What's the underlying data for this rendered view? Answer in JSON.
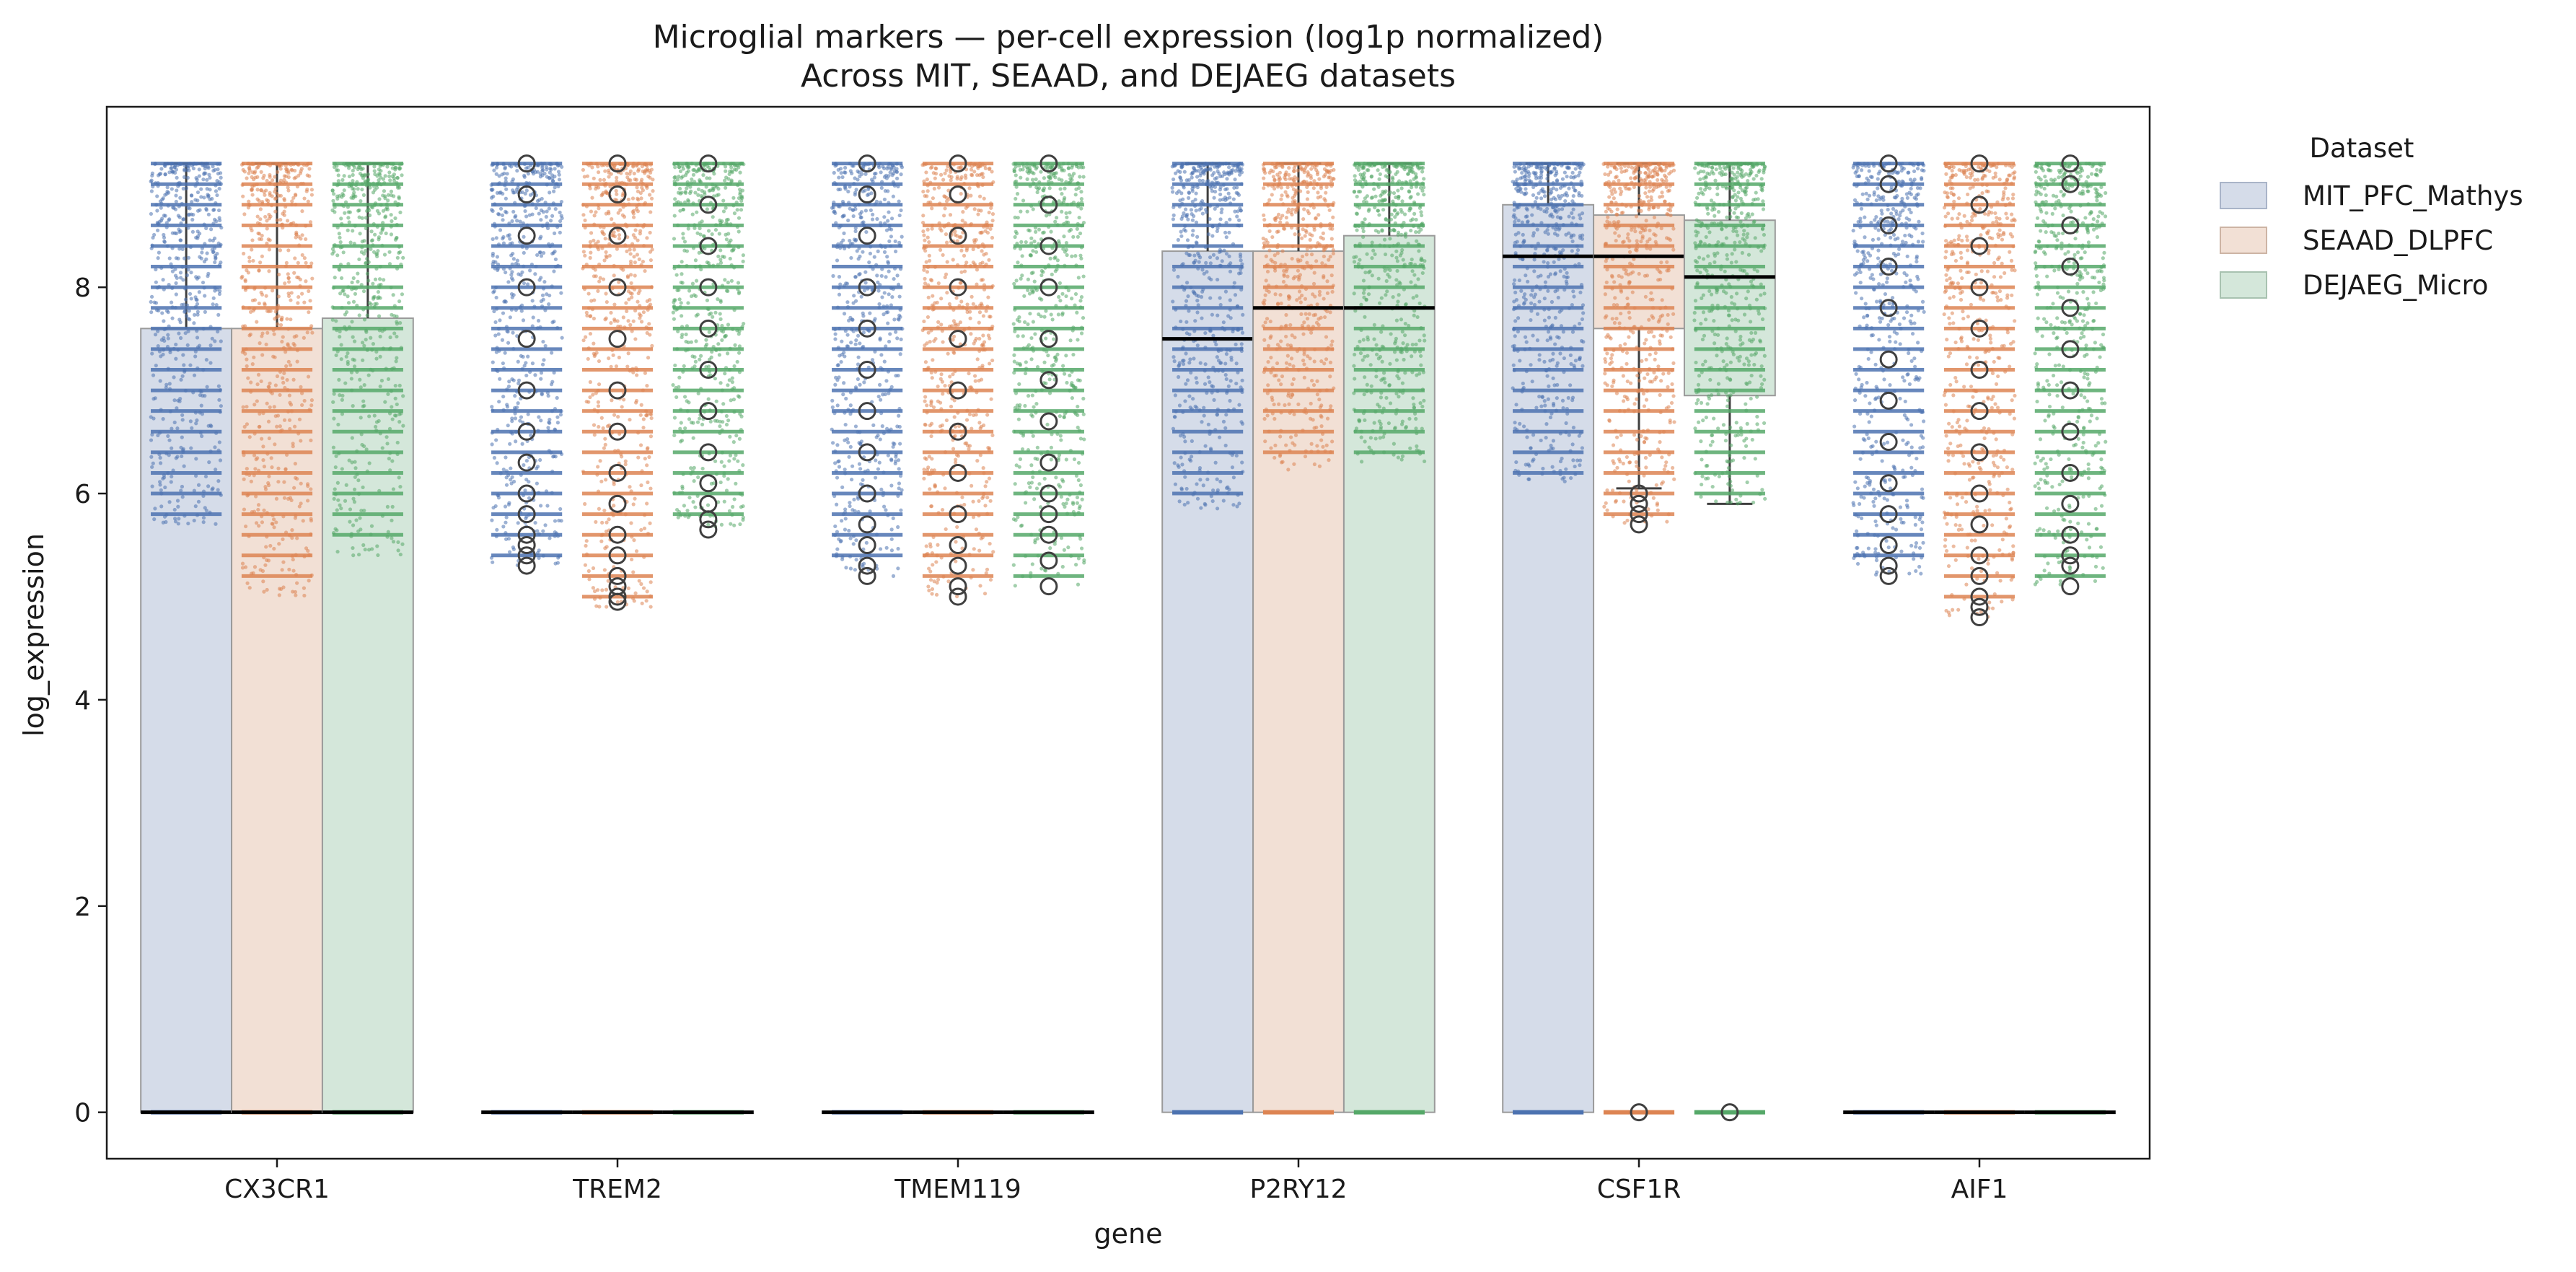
{
  "chart_data": {
    "type": "box",
    "title": "Microglial markers — per-cell expression (log1p normalized)",
    "subtitle": "Across MIT, SEAAD, and DEJAEG datasets",
    "xlabel": "gene",
    "ylabel": "log_expression",
    "ylim": [
      -0.45,
      9.75
    ],
    "yticks": [
      0,
      2,
      4,
      6,
      8
    ],
    "grid": false,
    "legend": {
      "title": "Dataset",
      "placement": "outside top-right"
    },
    "categories": [
      "CX3CR1",
      "TREM2",
      "TMEM119",
      "P2RY12",
      "CSF1R",
      "AIF1"
    ],
    "series": [
      {
        "name": "MIT_PFC_Mathys",
        "color": "#4c72b0",
        "box_fill": "#d5dce9",
        "boxes": [
          {
            "q1": 0,
            "median": 0,
            "q3": 7.6,
            "whisker_low": 0,
            "whisker_high": 9.2,
            "points_min": 5.7,
            "points_max": 9.2,
            "outliers": []
          },
          {
            "q1": 0,
            "median": 0,
            "q3": 0,
            "whisker_low": 0,
            "whisker_high": 0,
            "points_min": 5.3,
            "points_max": 9.2,
            "outliers": [
              5.3,
              5.4,
              5.5,
              5.6,
              5.8,
              6.0,
              6.3,
              6.6,
              7.0,
              7.5,
              8.0,
              8.5,
              8.9,
              9.2
            ]
          },
          {
            "q1": 0,
            "median": 0,
            "q3": 0,
            "whisker_low": 0,
            "whisker_high": 0,
            "points_min": 5.2,
            "points_max": 9.2,
            "outliers": [
              5.2,
              5.3,
              5.5,
              5.7,
              6.0,
              6.4,
              6.8,
              7.2,
              7.6,
              8.0,
              8.5,
              8.9,
              9.2
            ]
          },
          {
            "q1": 0,
            "median": 7.5,
            "q3": 8.35,
            "whisker_low": 0,
            "whisker_high": 9.2,
            "points_min": 5.85,
            "points_max": 9.2,
            "outliers": []
          },
          {
            "q1": 0,
            "median": 8.3,
            "q3": 8.8,
            "whisker_low": 0,
            "whisker_high": 9.2,
            "points_min": 6.1,
            "points_max": 9.2,
            "outliers": []
          },
          {
            "q1": 0,
            "median": 0,
            "q3": 0,
            "whisker_low": 0,
            "whisker_high": 0,
            "points_min": 5.2,
            "points_max": 9.2,
            "outliers": [
              5.2,
              5.3,
              5.5,
              5.8,
              6.1,
              6.5,
              6.9,
              7.3,
              7.8,
              8.2,
              8.6,
              9.0,
              9.2
            ]
          }
        ]
      },
      {
        "name": "SEAAD_DLPFC",
        "color": "#dd8452",
        "box_fill": "#f2e0d5",
        "boxes": [
          {
            "q1": 0,
            "median": 0,
            "q3": 7.6,
            "whisker_low": 0,
            "whisker_high": 9.2,
            "points_min": 5.0,
            "points_max": 9.2,
            "outliers": []
          },
          {
            "q1": 0,
            "median": 0,
            "q3": 0,
            "whisker_low": 0,
            "whisker_high": 0,
            "points_min": 4.9,
            "points_max": 9.2,
            "outliers": [
              4.95,
              5.0,
              5.1,
              5.2,
              5.4,
              5.6,
              5.9,
              6.2,
              6.6,
              7.0,
              7.5,
              8.0,
              8.5,
              8.9,
              9.2
            ]
          },
          {
            "q1": 0,
            "median": 0,
            "q3": 0,
            "whisker_low": 0,
            "whisker_high": 0,
            "points_min": 5.0,
            "points_max": 9.2,
            "outliers": [
              5.0,
              5.1,
              5.3,
              5.5,
              5.8,
              6.2,
              6.6,
              7.0,
              7.5,
              8.0,
              8.5,
              8.9,
              9.2
            ]
          },
          {
            "q1": 0,
            "median": 7.8,
            "q3": 8.35,
            "whisker_low": 0,
            "whisker_high": 9.2,
            "points_min": 6.2,
            "points_max": 9.2,
            "outliers": []
          },
          {
            "q1": 7.6,
            "median": 8.3,
            "q3": 8.7,
            "whisker_low": 6.05,
            "whisker_high": 9.2,
            "points_min": 5.7,
            "points_max": 9.2,
            "outliers": [
              0,
              5.7,
              5.8,
              5.9,
              6.0
            ]
          },
          {
            "q1": 0,
            "median": 0,
            "q3": 0,
            "whisker_low": 0,
            "whisker_high": 0,
            "points_min": 4.8,
            "points_max": 9.2,
            "outliers": [
              4.8,
              4.9,
              5.0,
              5.2,
              5.4,
              5.7,
              6.0,
              6.4,
              6.8,
              7.2,
              7.6,
              8.0,
              8.4,
              8.8,
              9.2
            ]
          }
        ]
      },
      {
        "name": "DEJAEG_Micro",
        "color": "#55a868",
        "box_fill": "#d4e7da",
        "boxes": [
          {
            "q1": 0,
            "median": 0,
            "q3": 7.7,
            "whisker_low": 0,
            "whisker_high": 9.2,
            "points_min": 5.4,
            "points_max": 9.2,
            "outliers": []
          },
          {
            "q1": 0,
            "median": 0,
            "q3": 0,
            "whisker_low": 0,
            "whisker_high": 0,
            "points_min": 5.65,
            "points_max": 9.2,
            "outliers": [
              5.65,
              5.75,
              5.9,
              6.1,
              6.4,
              6.8,
              7.2,
              7.6,
              8.0,
              8.4,
              8.8,
              9.2
            ]
          },
          {
            "q1": 0,
            "median": 0,
            "q3": 0,
            "whisker_low": 0,
            "whisker_high": 0,
            "points_min": 5.1,
            "points_max": 9.2,
            "outliers": [
              5.1,
              5.35,
              5.6,
              5.8,
              6.0,
              6.3,
              6.7,
              7.1,
              7.5,
              8.0,
              8.4,
              8.8,
              9.2
            ]
          },
          {
            "q1": 0,
            "median": 7.8,
            "q3": 8.5,
            "whisker_low": 0,
            "whisker_high": 9.2,
            "points_min": 6.3,
            "points_max": 9.2,
            "outliers": []
          },
          {
            "q1": 6.95,
            "median": 8.1,
            "q3": 8.65,
            "whisker_low": 5.9,
            "whisker_high": 9.2,
            "points_min": 5.9,
            "points_max": 9.2,
            "outliers": [
              0
            ]
          },
          {
            "q1": 0,
            "median": 0,
            "q3": 0,
            "whisker_low": 0,
            "whisker_high": 0,
            "points_min": 5.1,
            "points_max": 9.2,
            "outliers": [
              5.1,
              5.3,
              5.4,
              5.6,
              5.9,
              6.2,
              6.6,
              7.0,
              7.4,
              7.8,
              8.2,
              8.6,
              9.0,
              9.2
            ]
          }
        ]
      }
    ]
  }
}
